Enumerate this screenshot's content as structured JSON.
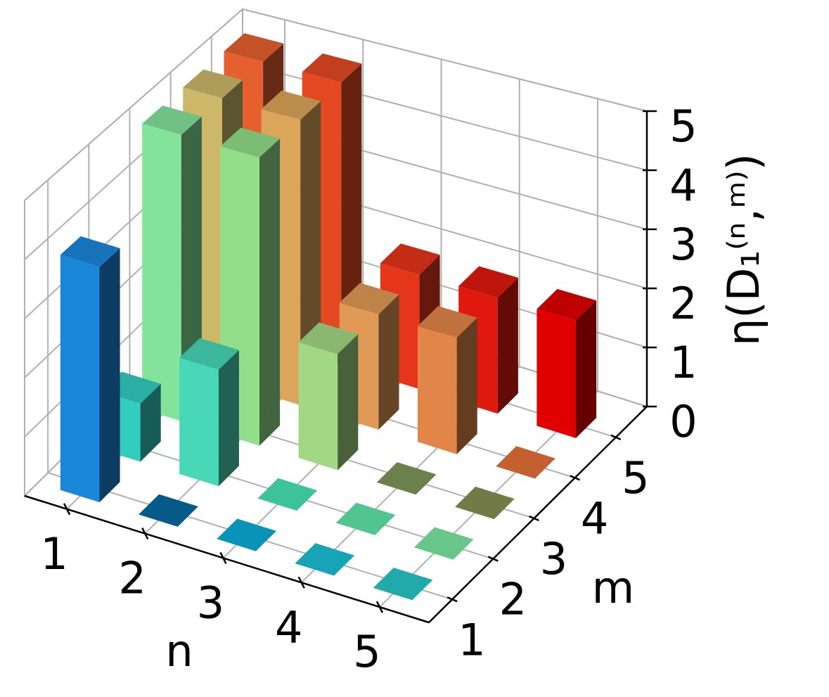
{
  "chart_data": {
    "type": "bar3d",
    "xlabel": "n",
    "ylabel": "m",
    "zlabel": "η(D₁⁽ⁿ,ᵐ⁾)",
    "x": [
      1,
      2,
      3,
      4,
      5
    ],
    "y": [
      1,
      2,
      3,
      4,
      5
    ],
    "values": [
      [
        4,
        1,
        5,
        5,
        5
      ],
      [
        0,
        2,
        5,
        5,
        5
      ],
      [
        0,
        0,
        2,
        2,
        2
      ],
      [
        0,
        0,
        0,
        2,
        2
      ],
      [
        0,
        0,
        0,
        0,
        2
      ]
    ],
    "colors": [
      [
        "#1a86da",
        "#33cdc0",
        "#84e39a",
        "#cdb86a",
        "#e5602e"
      ],
      [
        "#066aa2",
        "#48d8b8",
        "#92de8a",
        "#dca65a",
        "#e34a22"
      ],
      [
        "#0cadd8",
        "#47e5b5",
        "#a2d884",
        "#e09a55",
        "#e5351a"
      ],
      [
        "#1bc0d8",
        "#60e6a9",
        "#7e9657",
        "#e28548",
        "#e0190e"
      ],
      [
        "#28c8c8",
        "#7ae9a2",
        "#868f51",
        "#e67138",
        "#e00000"
      ]
    ],
    "bar_width": 0.5,
    "xlim": [
      0.46,
      5.63
    ],
    "ylim": [
      0.43,
      5.76
    ],
    "zlim": [
      0,
      5
    ],
    "xticks": [
      1,
      2,
      3,
      4,
      5
    ],
    "yticks": [
      1,
      2,
      3,
      4,
      5
    ],
    "zticks": [
      0,
      1,
      2,
      3,
      4,
      5
    ],
    "grid": true
  }
}
